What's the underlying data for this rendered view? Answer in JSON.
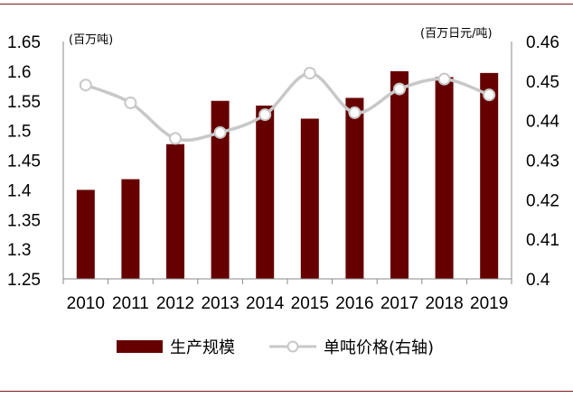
{
  "chart_data": {
    "type": "bar",
    "categories": [
      "2010",
      "2011",
      "2012",
      "2013",
      "2014",
      "2015",
      "2016",
      "2017",
      "2018",
      "2019"
    ],
    "series": [
      {
        "name": "生产规模",
        "type": "bar",
        "axis": "left",
        "values": [
          1.4,
          1.418,
          1.477,
          1.55,
          1.542,
          1.52,
          1.555,
          1.6,
          1.59,
          1.597
        ],
        "color": "#660000"
      },
      {
        "name": "单吨价格(右轴)",
        "type": "line",
        "axis": "right",
        "values": [
          0.449,
          0.4445,
          0.4355,
          0.437,
          0.4415,
          0.452,
          0.442,
          0.448,
          0.4505,
          0.4465
        ],
        "color": "#c8c8c8"
      }
    ],
    "left_axis": {
      "unit": "(百万吨)",
      "ylim": [
        1.25,
        1.65
      ],
      "ticks": [
        "1.25",
        "1.3",
        "1.35",
        "1.4",
        "1.45",
        "1.5",
        "1.55",
        "1.6",
        "1.65"
      ]
    },
    "right_axis": {
      "unit": "(百万日元/吨)",
      "ylim": [
        0.4,
        0.46
      ],
      "ticks": [
        "0.4",
        "0.41",
        "0.42",
        "0.43",
        "0.44",
        "0.45",
        "0.46"
      ]
    },
    "grid": false,
    "legend_position": "bottom"
  }
}
